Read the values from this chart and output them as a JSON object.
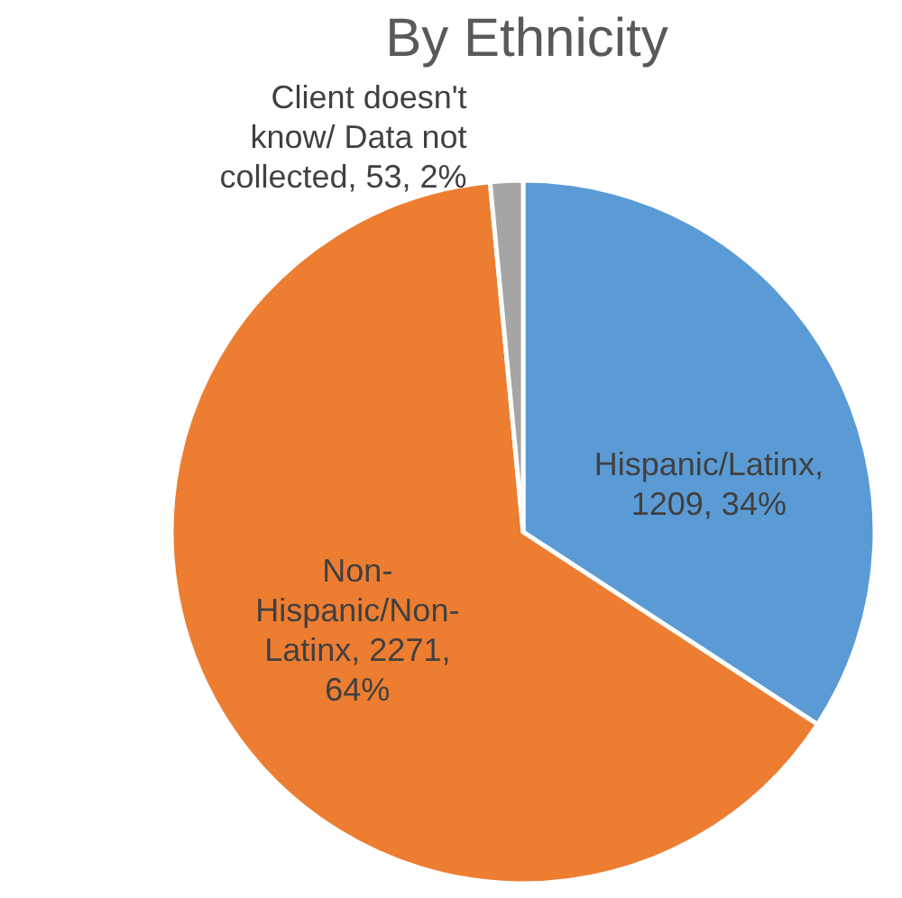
{
  "chart_data": {
    "type": "pie",
    "title": "By Ethnicity",
    "categories": [
      "Hispanic/Latinx",
      "Non-Hispanic/Non-Latinx",
      "Client doesn't know/ Data not collected"
    ],
    "values": [
      1209,
      2271,
      53
    ],
    "colors": [
      "#5b9bd5",
      "#ed7d31",
      "#a5a5a5"
    ],
    "value_labels": [
      ", 1209, 34%",
      ", 2271, 64%",
      ", 53, 2%"
    ]
  }
}
